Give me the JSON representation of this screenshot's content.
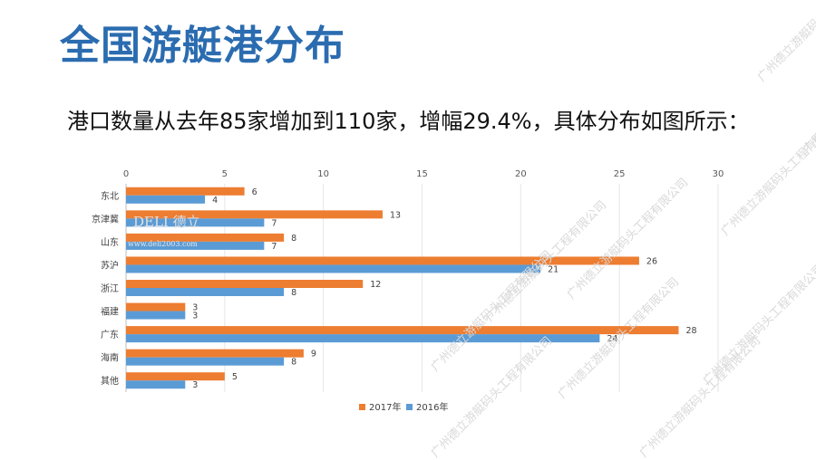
{
  "slide": {
    "title": "全国游艇港分布",
    "subtitle": "港口数量从去年85家增加到110家，增幅29.4%，具体分布如图所示："
  },
  "watermarks": [
    "广州德立游艇码头工程有限公司"
  ],
  "logo_text": [
    "DELI 德立",
    "www.deli2003.com"
  ],
  "chart_data": {
    "type": "bar",
    "orientation": "horizontal",
    "categories": [
      "东北",
      "京津冀",
      "山东",
      "苏沪",
      "浙江",
      "福建",
      "广东",
      "海南",
      "其他"
    ],
    "series": [
      {
        "name": "2017年",
        "color": "#ed7d31",
        "values": [
          6,
          13,
          8,
          26,
          12,
          3,
          28,
          9,
          5
        ]
      },
      {
        "name": "2016年",
        "color": "#5b9bd5",
        "values": [
          4,
          7,
          7,
          21,
          8,
          3,
          24,
          8,
          3
        ]
      }
    ],
    "xlim": [
      0,
      30
    ],
    "xticks": [
      0,
      5,
      10,
      15,
      20,
      25,
      30
    ],
    "axis_position": "top",
    "grid": true,
    "legend": "bottom",
    "data_labels": true
  }
}
